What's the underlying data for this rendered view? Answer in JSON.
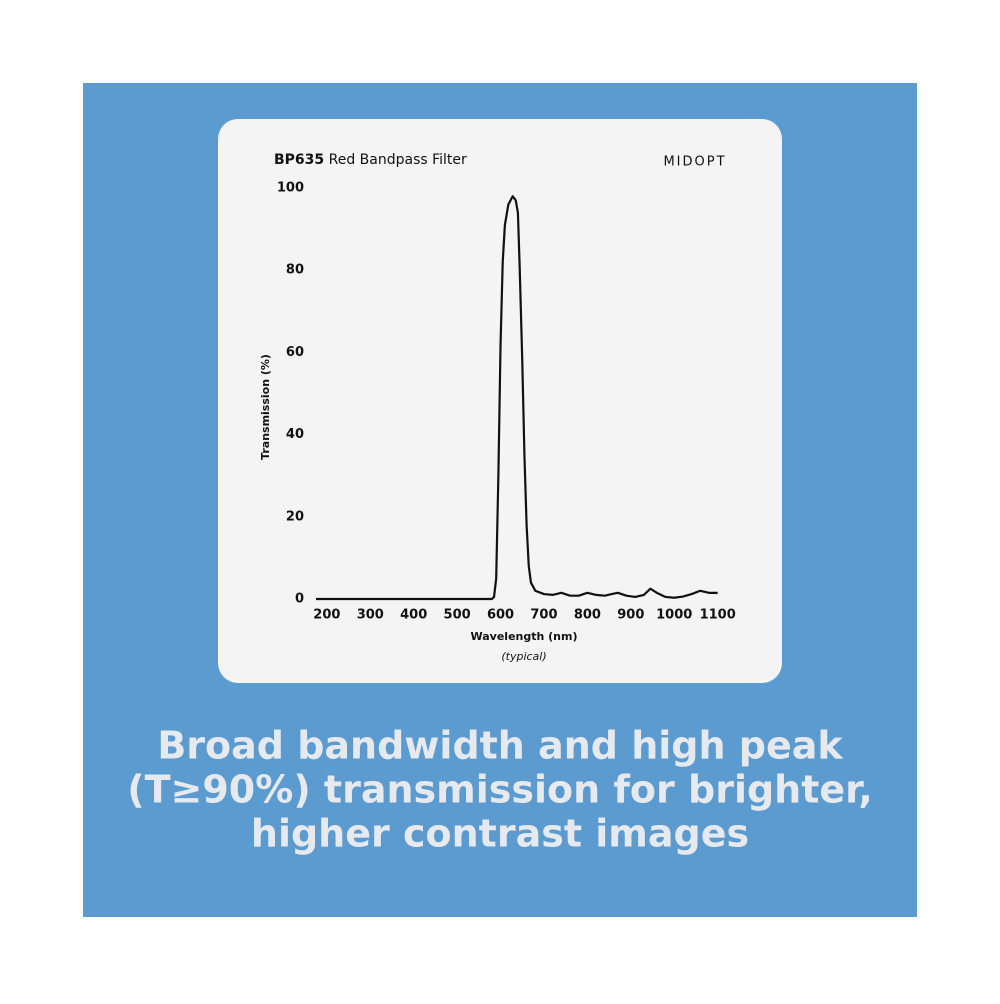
{
  "chart_data": {
    "type": "line",
    "title_bold": "BP635",
    "title": "Red Bandpass Filter",
    "logo": "MIDOPT",
    "y_label": "Transmission (%)",
    "x_label": "Wavelength (nm)",
    "x_note": "(typical)",
    "caption": [
      "Broad bandwidth and high peak",
      "(T≥90%) transmission for brighter,",
      "higher contrast images"
    ],
    "color": "#111111",
    "xlim": [
      175,
      1110
    ],
    "ylim": [
      0,
      100
    ],
    "xticks": [
      200,
      300,
      400,
      500,
      600,
      700,
      800,
      900,
      1000,
      1100
    ],
    "yticks": [
      0,
      20,
      40,
      60,
      80,
      100
    ],
    "grid": false,
    "x": [
      175,
      580,
      585,
      590,
      595,
      600,
      605,
      610,
      618,
      628,
      635,
      640,
      644,
      650,
      655,
      660,
      665,
      670,
      680,
      700,
      720,
      740,
      760,
      780,
      800,
      820,
      840,
      860,
      870,
      890,
      910,
      930,
      945,
      960,
      980,
      1000,
      1020,
      1040,
      1060,
      1080,
      1100
    ],
    "values": [
      0,
      0,
      0.5,
      5,
      30,
      62,
      82,
      91,
      96,
      98,
      97,
      94,
      81,
      58,
      35,
      18,
      8,
      4,
      2,
      1.2,
      1,
      1.5,
      0.8,
      0.8,
      1.5,
      1,
      0.8,
      1.3,
      1.5,
      0.8,
      0.5,
      1,
      2.5,
      1.5,
      0.5,
      0.3,
      0.6,
      1.2,
      2,
      1.5,
      1.5
    ]
  }
}
